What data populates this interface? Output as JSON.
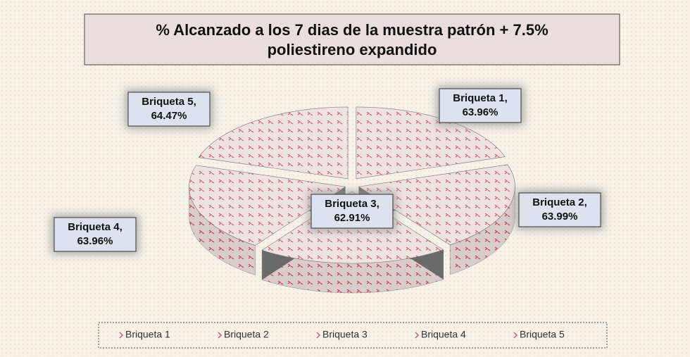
{
  "chart_data": {
    "type": "pie3d",
    "title": [
      "% Alcanzado a los 7 dias de la muestra patrón + 7.5%",
      "poliestireno expandido"
    ],
    "categories": [
      "Briqueta 1",
      "Briqueta 2",
      "Briqueta 3",
      "Briqueta 4",
      "Briqueta 5"
    ],
    "values": [
      63.96,
      63.99,
      62.91,
      63.96,
      64.47
    ],
    "value_labels": [
      "63.96%",
      "63.99%",
      "62.91%",
      "63.96%",
      "64.47%"
    ],
    "label_names": [
      "Briqueta 1,",
      "Briqueta 2,",
      "Briqueta 3,",
      "Briqueta 4,",
      "Briqueta 5,"
    ],
    "color": "#ecdada",
    "legend": "bottom"
  }
}
